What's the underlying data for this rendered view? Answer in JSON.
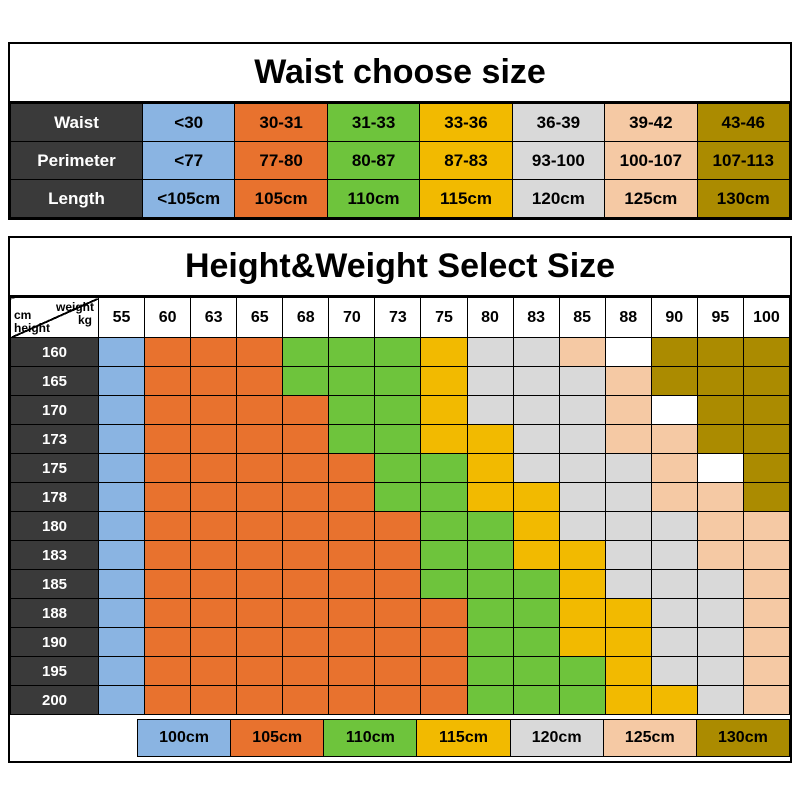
{
  "chart_data": [
    {
      "type": "table",
      "title": "Waist choose size",
      "row_labels": [
        "Waist",
        "Perimeter",
        "Length"
      ],
      "rows": [
        [
          "<30",
          "30-31",
          "31-33",
          "33-36",
          "36-39",
          "39-42",
          "43-46"
        ],
        [
          "<77",
          "77-80",
          "80-87",
          "87-83",
          "93-100",
          "100-107",
          "107-113"
        ],
        [
          "<105cm",
          "105cm",
          "110cm",
          "115cm",
          "120cm",
          "125cm",
          "130cm"
        ]
      ],
      "column_colors": [
        "blue",
        "orange",
        "green",
        "yellow",
        "gray",
        "peach",
        "gold"
      ]
    },
    {
      "type": "table",
      "title": "Height&Weight Select Size",
      "corner": {
        "weight": "weight",
        "kg": "kg",
        "cm": "cm",
        "height": "height"
      },
      "weights": [
        "55",
        "60",
        "63",
        "65",
        "68",
        "70",
        "73",
        "75",
        "80",
        "83",
        "85",
        "88",
        "90",
        "95",
        "100"
      ],
      "heights": [
        "160",
        "165",
        "170",
        "173",
        "175",
        "178",
        "180",
        "183",
        "185",
        "188",
        "190",
        "195",
        "200"
      ],
      "matrix": [
        "BOOOGGGYSSPWDDD",
        "BOOOGGGYSSSPDDD",
        "BOOOOGGYSSSPWDD",
        "BOOOOGGYYSSPPDD",
        "BOOOOOGGYSSSPWD",
        "BOOOOOGGYYSSPPD",
        "BOOOOOOGGYSSSPP",
        "BOOOOOOGGYYSSPP",
        "BOOOOOOGGGYSSSP",
        "BOOOOOOOGGYYSSP",
        "BOOOOOOOGGYYSSP",
        "BOOOOOOOGGGYSSP",
        "BOOOOOOOGGGYYSP"
      ],
      "code_colors": {
        "B": "blue",
        "O": "orange",
        "G": "green",
        "Y": "yellow",
        "S": "gray",
        "P": "peach",
        "D": "gold",
        "W": "white"
      },
      "legend": [
        {
          "label": "100cm",
          "color": "blue"
        },
        {
          "label": "105cm",
          "color": "orange"
        },
        {
          "label": "110cm",
          "color": "green"
        },
        {
          "label": "115cm",
          "color": "yellow"
        },
        {
          "label": "120cm",
          "color": "gray"
        },
        {
          "label": "125cm",
          "color": "peach"
        },
        {
          "label": "130cm",
          "color": "gold"
        }
      ]
    }
  ],
  "colors": {
    "blue": "#8ab4e2",
    "orange": "#e8722e",
    "green": "#6ec43c",
    "yellow": "#f2ba00",
    "gray": "#d9d9d9",
    "peach": "#f5c9a4",
    "gold": "#ab8b00",
    "white": "#ffffff",
    "header_dark": "#3a3a3a"
  }
}
